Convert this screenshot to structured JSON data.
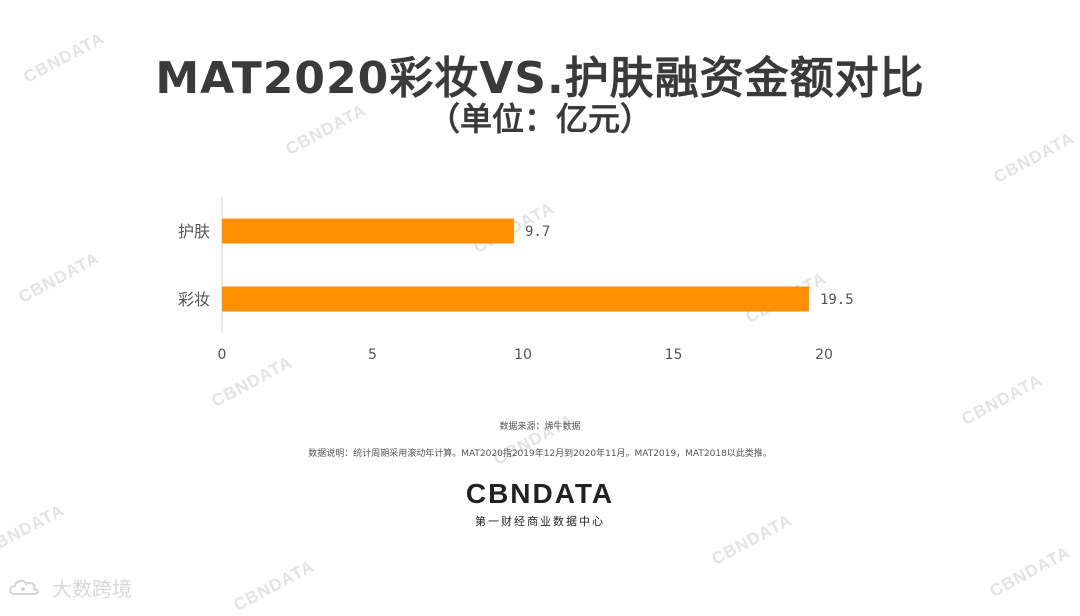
{
  "title": "MAT2020彩妆VS.护肤融资金额对比",
  "subtitle": "（单位：亿元）",
  "chart_data": {
    "type": "bar",
    "orientation": "horizontal",
    "categories": [
      "护肤",
      "彩妆"
    ],
    "values": [
      9.7,
      19.5
    ],
    "value_labels": [
      "9.7",
      "19.5"
    ],
    "xlim": [
      0,
      20
    ],
    "xticks": [
      "0",
      "5",
      "10",
      "15",
      "20"
    ],
    "grid": false,
    "bar_color": "#ff8f00"
  },
  "source": "数据来源：烯牛数据",
  "note": "数据说明：统计周期采用滚动年计算。MAT2020指2019年12月到2020年11月。MAT2019，MAT2018以此类推。",
  "logo": {
    "text": "CBNDATA",
    "tagline": "第一财经商业数据中心"
  },
  "watermark": {
    "text": "CBNDATA"
  },
  "corner_watermark": {
    "text": "大数跨境",
    "icon": "cloud-logo-icon"
  }
}
